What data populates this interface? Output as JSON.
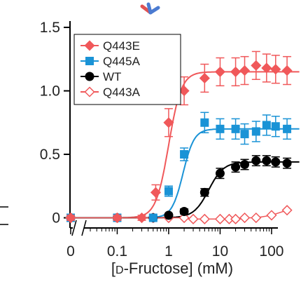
{
  "chart_data": {
    "type": "scatter",
    "title": "",
    "xlabel_parts": [
      "[",
      "D",
      "-Fructose] (mM)"
    ],
    "ylabel": "",
    "x_scale": "log",
    "x_axis_break": true,
    "ylim": [
      -0.08,
      1.55
    ],
    "y_ticks": [
      0,
      0.5,
      1.0,
      1.5
    ],
    "y_tick_labels": [
      "0",
      "0.5",
      "1.0",
      "1.5"
    ],
    "x_tick_labels": [
      "0",
      "0.1",
      "1",
      "10",
      "100"
    ],
    "x_tick_values": [
      0,
      0.1,
      1,
      10,
      100
    ],
    "legend_position": "top-left",
    "series": [
      {
        "name": "Q443E",
        "color": "#f0585a",
        "marker": "filled-diamond",
        "points": [
          {
            "x": 0,
            "y": 0.0,
            "err": 0.02
          },
          {
            "x": 0.1,
            "y": 0.0,
            "err": 0.02
          },
          {
            "x": 0.3,
            "y": 0.0,
            "err": 0.02
          },
          {
            "x": 0.56,
            "y": 0.2,
            "err": 0.06
          },
          {
            "x": 1.0,
            "y": 0.75,
            "err": 0.11
          },
          {
            "x": 2.0,
            "y": 1.0,
            "err": 0.11
          },
          {
            "x": 5.0,
            "y": 1.1,
            "err": 0.11
          },
          {
            "x": 10,
            "y": 1.15,
            "err": 0.11
          },
          {
            "x": 20,
            "y": 1.15,
            "err": 0.11
          },
          {
            "x": 30,
            "y": 1.16,
            "err": 0.11
          },
          {
            "x": 50,
            "y": 1.2,
            "err": 0.11
          },
          {
            "x": 80,
            "y": 1.18,
            "err": 0.11
          },
          {
            "x": 120,
            "y": 1.17,
            "err": 0.11
          },
          {
            "x": 200,
            "y": 1.16,
            "err": 0.11
          }
        ]
      },
      {
        "name": "Q445A",
        "color": "#1a93d6",
        "marker": "filled-square",
        "points": [
          {
            "x": 0,
            "y": 0.0,
            "err": 0.02
          },
          {
            "x": 0.1,
            "y": 0.0,
            "err": 0.02
          },
          {
            "x": 0.5,
            "y": 0.0,
            "err": 0.02
          },
          {
            "x": 1.0,
            "y": 0.21,
            "err": 0.04
          },
          {
            "x": 2.0,
            "y": 0.5,
            "err": 0.05
          },
          {
            "x": 5.0,
            "y": 0.75,
            "err": 0.08
          },
          {
            "x": 10,
            "y": 0.7,
            "err": 0.08
          },
          {
            "x": 20,
            "y": 0.7,
            "err": 0.08
          },
          {
            "x": 30,
            "y": 0.66,
            "err": 0.08
          },
          {
            "x": 50,
            "y": 0.68,
            "err": 0.08
          },
          {
            "x": 80,
            "y": 0.73,
            "err": 0.08
          },
          {
            "x": 120,
            "y": 0.72,
            "err": 0.08
          },
          {
            "x": 200,
            "y": 0.7,
            "err": 0.08
          }
        ]
      },
      {
        "name": "WT",
        "color": "#000000",
        "marker": "filled-circle",
        "points": [
          {
            "x": 0,
            "y": 0.0,
            "err": 0.01
          },
          {
            "x": 0.1,
            "y": 0.0,
            "err": 0.01
          },
          {
            "x": 0.5,
            "y": 0.0,
            "err": 0.01
          },
          {
            "x": 1.0,
            "y": 0.02,
            "err": 0.01
          },
          {
            "x": 2.0,
            "y": 0.05,
            "err": 0.02
          },
          {
            "x": 5.0,
            "y": 0.2,
            "err": 0.03
          },
          {
            "x": 10,
            "y": 0.35,
            "err": 0.04
          },
          {
            "x": 20,
            "y": 0.4,
            "err": 0.04
          },
          {
            "x": 30,
            "y": 0.42,
            "err": 0.04
          },
          {
            "x": 50,
            "y": 0.45,
            "err": 0.04
          },
          {
            "x": 80,
            "y": 0.45,
            "err": 0.04
          },
          {
            "x": 120,
            "y": 0.44,
            "err": 0.04
          },
          {
            "x": 200,
            "y": 0.43,
            "err": 0.04
          }
        ]
      },
      {
        "name": "Q443A",
        "color": "#f0585a",
        "marker": "open-diamond",
        "points": [
          {
            "x": 0,
            "y": 0.0,
            "err": 0.0
          },
          {
            "x": 0.1,
            "y": 0.0,
            "err": 0.0
          },
          {
            "x": 0.5,
            "y": 0.0,
            "err": 0.0
          },
          {
            "x": 1.0,
            "y": 0.0,
            "err": 0.0
          },
          {
            "x": 2.0,
            "y": 0.0,
            "err": 0.0
          },
          {
            "x": 3.0,
            "y": -0.01,
            "err": 0.0
          },
          {
            "x": 5.0,
            "y": -0.01,
            "err": 0.0
          },
          {
            "x": 10,
            "y": -0.01,
            "err": 0.0
          },
          {
            "x": 15,
            "y": -0.01,
            "err": 0.0
          },
          {
            "x": 20,
            "y": -0.01,
            "err": 0.0
          },
          {
            "x": 30,
            "y": 0.0,
            "err": 0.0
          },
          {
            "x": 50,
            "y": 0.0,
            "err": 0.0
          },
          {
            "x": 100,
            "y": 0.02,
            "err": 0.0
          },
          {
            "x": 200,
            "y": 0.06,
            "err": 0.0
          }
        ]
      }
    ],
    "fit_curves": [
      {
        "series": "Q443E",
        "max": 1.15,
        "ec50": 1.0,
        "hill": 3.5
      },
      {
        "series": "Q445A",
        "max": 0.7,
        "ec50": 1.9,
        "hill": 4.0
      },
      {
        "series": "WT",
        "max": 0.44,
        "ec50": 6.0,
        "hill": 3.0
      },
      {
        "series": "Q443A",
        "max": 0.0,
        "ec50": 1.0,
        "hill": 1.0
      }
    ]
  }
}
